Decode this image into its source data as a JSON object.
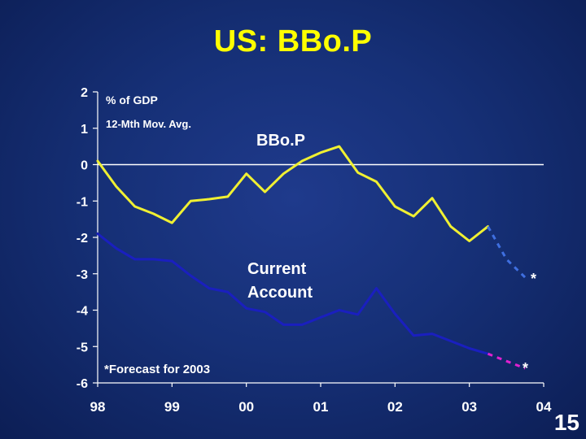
{
  "slide": {
    "title": "US: BBo.P",
    "page_number": "15"
  },
  "chart_data": {
    "type": "line",
    "ylim": [
      -6,
      2
    ],
    "y_ticks": [
      "2",
      "1",
      "0",
      "-1",
      "-2",
      "-3",
      "-4",
      "-5",
      "-6"
    ],
    "x_ticks": [
      "98",
      "99",
      "00",
      "01",
      "02",
      "03",
      "04"
    ],
    "ylabel": "% of GDP",
    "sublabel": "12-Mth Mov. Avg.",
    "footnote": "*Forecast for 2003",
    "zero_line": true,
    "series": [
      {
        "name": "BBo.P",
        "color": "#f0f032",
        "x": [
          1998.0,
          1998.25,
          1998.5,
          1998.75,
          1999.0,
          1999.25,
          1999.5,
          1999.75,
          2000.0,
          2000.25,
          2000.5,
          2000.75,
          2001.0,
          2001.25,
          2001.5,
          2001.75,
          2002.0,
          2002.25,
          2002.5,
          2002.75,
          2003.0,
          2003.25
        ],
        "y": [
          0.1,
          -0.6,
          -1.15,
          -1.35,
          -1.6,
          -1.0,
          -0.95,
          -0.88,
          -0.25,
          -0.75,
          -0.25,
          0.1,
          0.33,
          0.5,
          -0.22,
          -0.47,
          -1.15,
          -1.42,
          -0.92,
          -1.7,
          -2.1,
          -1.7
        ]
      },
      {
        "name": "BBo.P forecast",
        "color": "#3f6fe0",
        "dashed": true,
        "x": [
          2003.25,
          2003.5,
          2003.75
        ],
        "y": [
          -1.7,
          -2.6,
          -3.1
        ],
        "marker_label": "*"
      },
      {
        "name": "Current Account",
        "label_lines": [
          "Current",
          "Account"
        ],
        "color": "#1a1fbf",
        "x": [
          1998.0,
          1998.25,
          1998.5,
          1998.75,
          1999.0,
          1999.25,
          1999.5,
          1999.75,
          2000.0,
          2000.25,
          2000.5,
          2000.75,
          2001.0,
          2001.25,
          2001.5,
          2001.75,
          2002.0,
          2002.25,
          2002.5,
          2002.75,
          2003.0,
          2003.25
        ],
        "y": [
          -1.9,
          -2.3,
          -2.6,
          -2.6,
          -2.65,
          -3.05,
          -3.4,
          -3.5,
          -3.95,
          -4.05,
          -4.4,
          -4.4,
          -4.2,
          -4.0,
          -4.12,
          -3.4,
          -4.1,
          -4.7,
          -4.65,
          -4.85,
          -5.05,
          -5.2
        ]
      },
      {
        "name": "Current Account forecast",
        "color": "#e020d0",
        "dashed": true,
        "x": [
          2003.25,
          2003.5,
          2003.75
        ],
        "y": [
          -5.2,
          -5.4,
          -5.6
        ],
        "marker_label": "*"
      }
    ]
  }
}
